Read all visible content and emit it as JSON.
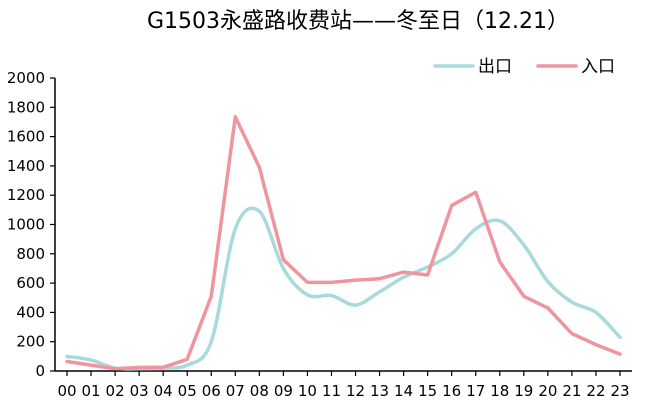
{
  "chart_data": {
    "type": "line",
    "title": "G1503永盛路收费站——冬至日（12.21）",
    "xlabel": "",
    "ylabel": "",
    "categories": [
      "00",
      "01",
      "02",
      "03",
      "04",
      "05",
      "06",
      "07",
      "08",
      "09",
      "10",
      "11",
      "12",
      "13",
      "14",
      "15",
      "16",
      "17",
      "18",
      "19",
      "20",
      "21",
      "22",
      "23"
    ],
    "ylim": [
      0,
      2000
    ],
    "yticks": [
      0,
      200,
      400,
      600,
      800,
      1000,
      1200,
      1400,
      1600,
      1800,
      2000
    ],
    "grid": false,
    "legend_position": "top-right",
    "series": [
      {
        "name": "出口",
        "color": "#a8dadb",
        "smooth": true,
        "values": [
          100,
          75,
          20,
          15,
          20,
          40,
          200,
          970,
          1090,
          700,
          520,
          515,
          450,
          540,
          640,
          710,
          800,
          970,
          1025,
          860,
          610,
          470,
          400,
          230
        ]
      },
      {
        "name": "入口",
        "color": "#f0949f",
        "smooth": false,
        "values": [
          65,
          40,
          15,
          25,
          25,
          80,
          510,
          1735,
          1390,
          760,
          605,
          605,
          620,
          630,
          675,
          655,
          1130,
          1220,
          745,
          510,
          430,
          255,
          180,
          115
        ]
      }
    ]
  }
}
